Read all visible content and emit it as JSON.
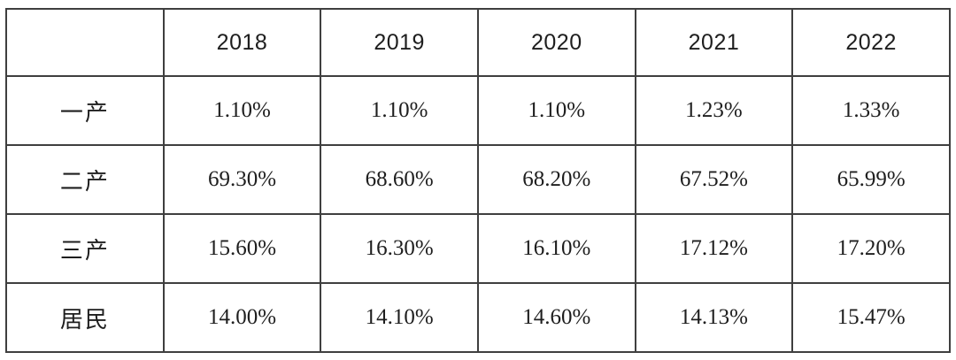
{
  "table": {
    "columns": [
      "",
      "2018",
      "2019",
      "2020",
      "2021",
      "2022"
    ],
    "rows": [
      {
        "label": "一产",
        "values": [
          "1.10%",
          "1.10%",
          "1.10%",
          "1.23%",
          "1.33%"
        ]
      },
      {
        "label": "二产",
        "values": [
          "69.30%",
          "68.60%",
          "68.20%",
          "67.52%",
          "65.99%"
        ]
      },
      {
        "label": "三产",
        "values": [
          "15.60%",
          "16.30%",
          "16.10%",
          "17.12%",
          "17.20%"
        ]
      },
      {
        "label": "居民",
        "values": [
          "14.00%",
          "14.10%",
          "14.60%",
          "14.13%",
          "15.47%"
        ]
      }
    ],
    "colors": {
      "border": "#3f3f3f",
      "text": "#1e1e1e",
      "background": "#ffffff"
    }
  },
  "chart_data": {
    "type": "table",
    "categories": [
      "2018",
      "2019",
      "2020",
      "2021",
      "2022"
    ],
    "series": [
      {
        "name": "一产",
        "values": [
          1.1,
          1.1,
          1.1,
          1.23,
          1.33
        ]
      },
      {
        "name": "二产",
        "values": [
          69.3,
          68.6,
          68.2,
          67.52,
          65.99
        ]
      },
      {
        "name": "三产",
        "values": [
          15.6,
          16.3,
          16.1,
          17.12,
          17.2
        ]
      },
      {
        "name": "居民",
        "values": [
          14.0,
          14.1,
          14.6,
          14.13,
          15.47
        ]
      }
    ],
    "unit": "%",
    "legend_position": "none",
    "grid": true
  }
}
